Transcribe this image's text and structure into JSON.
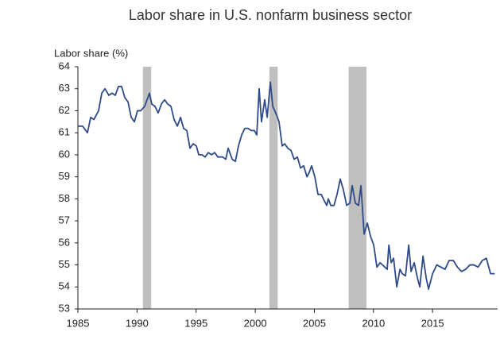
{
  "chart_data": {
    "type": "line",
    "title": "Labor share in U.S. nonfarm business sector",
    "y_label": "Labor share (%)",
    "x": [
      1985.0,
      1985.4,
      1985.81,
      1986.08,
      1986.35,
      1986.75,
      1987.02,
      1987.29,
      1987.62,
      1987.89,
      1988.16,
      1988.43,
      1988.7,
      1988.97,
      1989.24,
      1989.51,
      1989.78,
      1990.04,
      1990.31,
      1990.65,
      1991.05,
      1991.25,
      1991.52,
      1991.79,
      1992.06,
      1992.33,
      1992.6,
      1992.87,
      1993.14,
      1993.41,
      1993.68,
      1993.94,
      1994.21,
      1994.48,
      1994.75,
      1995.02,
      1995.22,
      1995.49,
      1995.76,
      1996.03,
      1996.3,
      1996.57,
      1996.84,
      1997.24,
      1997.51,
      1997.71,
      1998.05,
      1998.32,
      1998.58,
      1998.85,
      1999.12,
      1999.39,
      1999.66,
      1999.93,
      2000.13,
      2000.33,
      2000.53,
      2000.8,
      2001.01,
      2001.28,
      2001.48,
      2001.81,
      2002.01,
      2002.28,
      2002.49,
      2002.75,
      2003.02,
      2003.29,
      2003.56,
      2003.83,
      2004.1,
      2004.37,
      2004.57,
      2004.77,
      2005.04,
      2005.31,
      2005.58,
      2005.85,
      2006.05,
      2006.18,
      2006.39,
      2006.66,
      2006.92,
      2007.19,
      2007.46,
      2007.73,
      2008.0,
      2008.2,
      2008.47,
      2008.74,
      2008.94,
      2009.21,
      2009.48,
      2009.75,
      2010.02,
      2010.29,
      2010.56,
      2010.96,
      2011.16,
      2011.3,
      2011.5,
      2011.7,
      2011.97,
      2012.24,
      2012.44,
      2012.71,
      2012.98,
      2013.18,
      2013.45,
      2013.72,
      2013.92,
      2014.19,
      2014.46,
      2014.66,
      2015.0,
      2015.35,
      2015.7,
      2016.05,
      2016.4,
      2016.75,
      2017.1,
      2017.45,
      2017.8,
      2018.15,
      2018.5,
      2018.85,
      2019.2,
      2019.55,
      2019.9,
      2020.25
    ],
    "series": [
      {
        "name": "Labor share",
        "color": "#2e4a87",
        "values": [
          61.3,
          61.3,
          61.0,
          61.7,
          61.6,
          62.0,
          62.8,
          63.0,
          62.7,
          62.8,
          62.7,
          63.1,
          63.1,
          62.6,
          62.4,
          61.7,
          61.5,
          62.0,
          62.0,
          62.2,
          62.8,
          62.3,
          62.2,
          61.9,
          62.3,
          62.5,
          62.3,
          62.2,
          61.6,
          61.3,
          61.7,
          61.2,
          61.1,
          60.3,
          60.5,
          60.4,
          60.0,
          60.0,
          59.9,
          60.1,
          60.0,
          60.1,
          59.9,
          59.9,
          59.8,
          60.3,
          59.8,
          59.7,
          60.4,
          60.9,
          61.2,
          61.2,
          61.1,
          61.1,
          60.9,
          63.0,
          61.5,
          62.5,
          61.7,
          63.3,
          62.2,
          61.8,
          61.5,
          60.4,
          60.5,
          60.3,
          60.2,
          59.8,
          59.9,
          59.4,
          59.5,
          59.0,
          59.2,
          59.5,
          59.0,
          58.2,
          58.2,
          57.9,
          57.7,
          58.0,
          57.7,
          57.7,
          58.2,
          58.9,
          58.4,
          57.7,
          57.8,
          58.6,
          57.8,
          57.7,
          58.6,
          56.4,
          56.9,
          56.3,
          55.9,
          54.9,
          55.1,
          54.9,
          54.8,
          55.9,
          55.1,
          55.3,
          54.0,
          54.8,
          54.6,
          54.5,
          55.9,
          54.7,
          55.1,
          54.4,
          54.0,
          55.4,
          54.4,
          53.9,
          54.6,
          55.0,
          54.9,
          54.8,
          55.2,
          55.2,
          54.9,
          54.7,
          54.8,
          55.0,
          55.0,
          54.9,
          55.2,
          55.3,
          54.6,
          54.6
        ]
      }
    ],
    "recessions": [
      [
        1990.5,
        1991.2
      ],
      [
        2001.2,
        2001.9
      ],
      [
        2007.9,
        2009.4
      ]
    ],
    "recession_color": "#bfbfbf",
    "xlim": [
      1985,
      2020.5
    ],
    "xticks": [
      1985,
      1990,
      1995,
      2000,
      2005,
      2010,
      2015
    ],
    "ylim": [
      53,
      64
    ],
    "yticks": [
      53,
      54,
      55,
      56,
      57,
      58,
      59,
      60,
      61,
      62,
      63,
      64
    ]
  }
}
